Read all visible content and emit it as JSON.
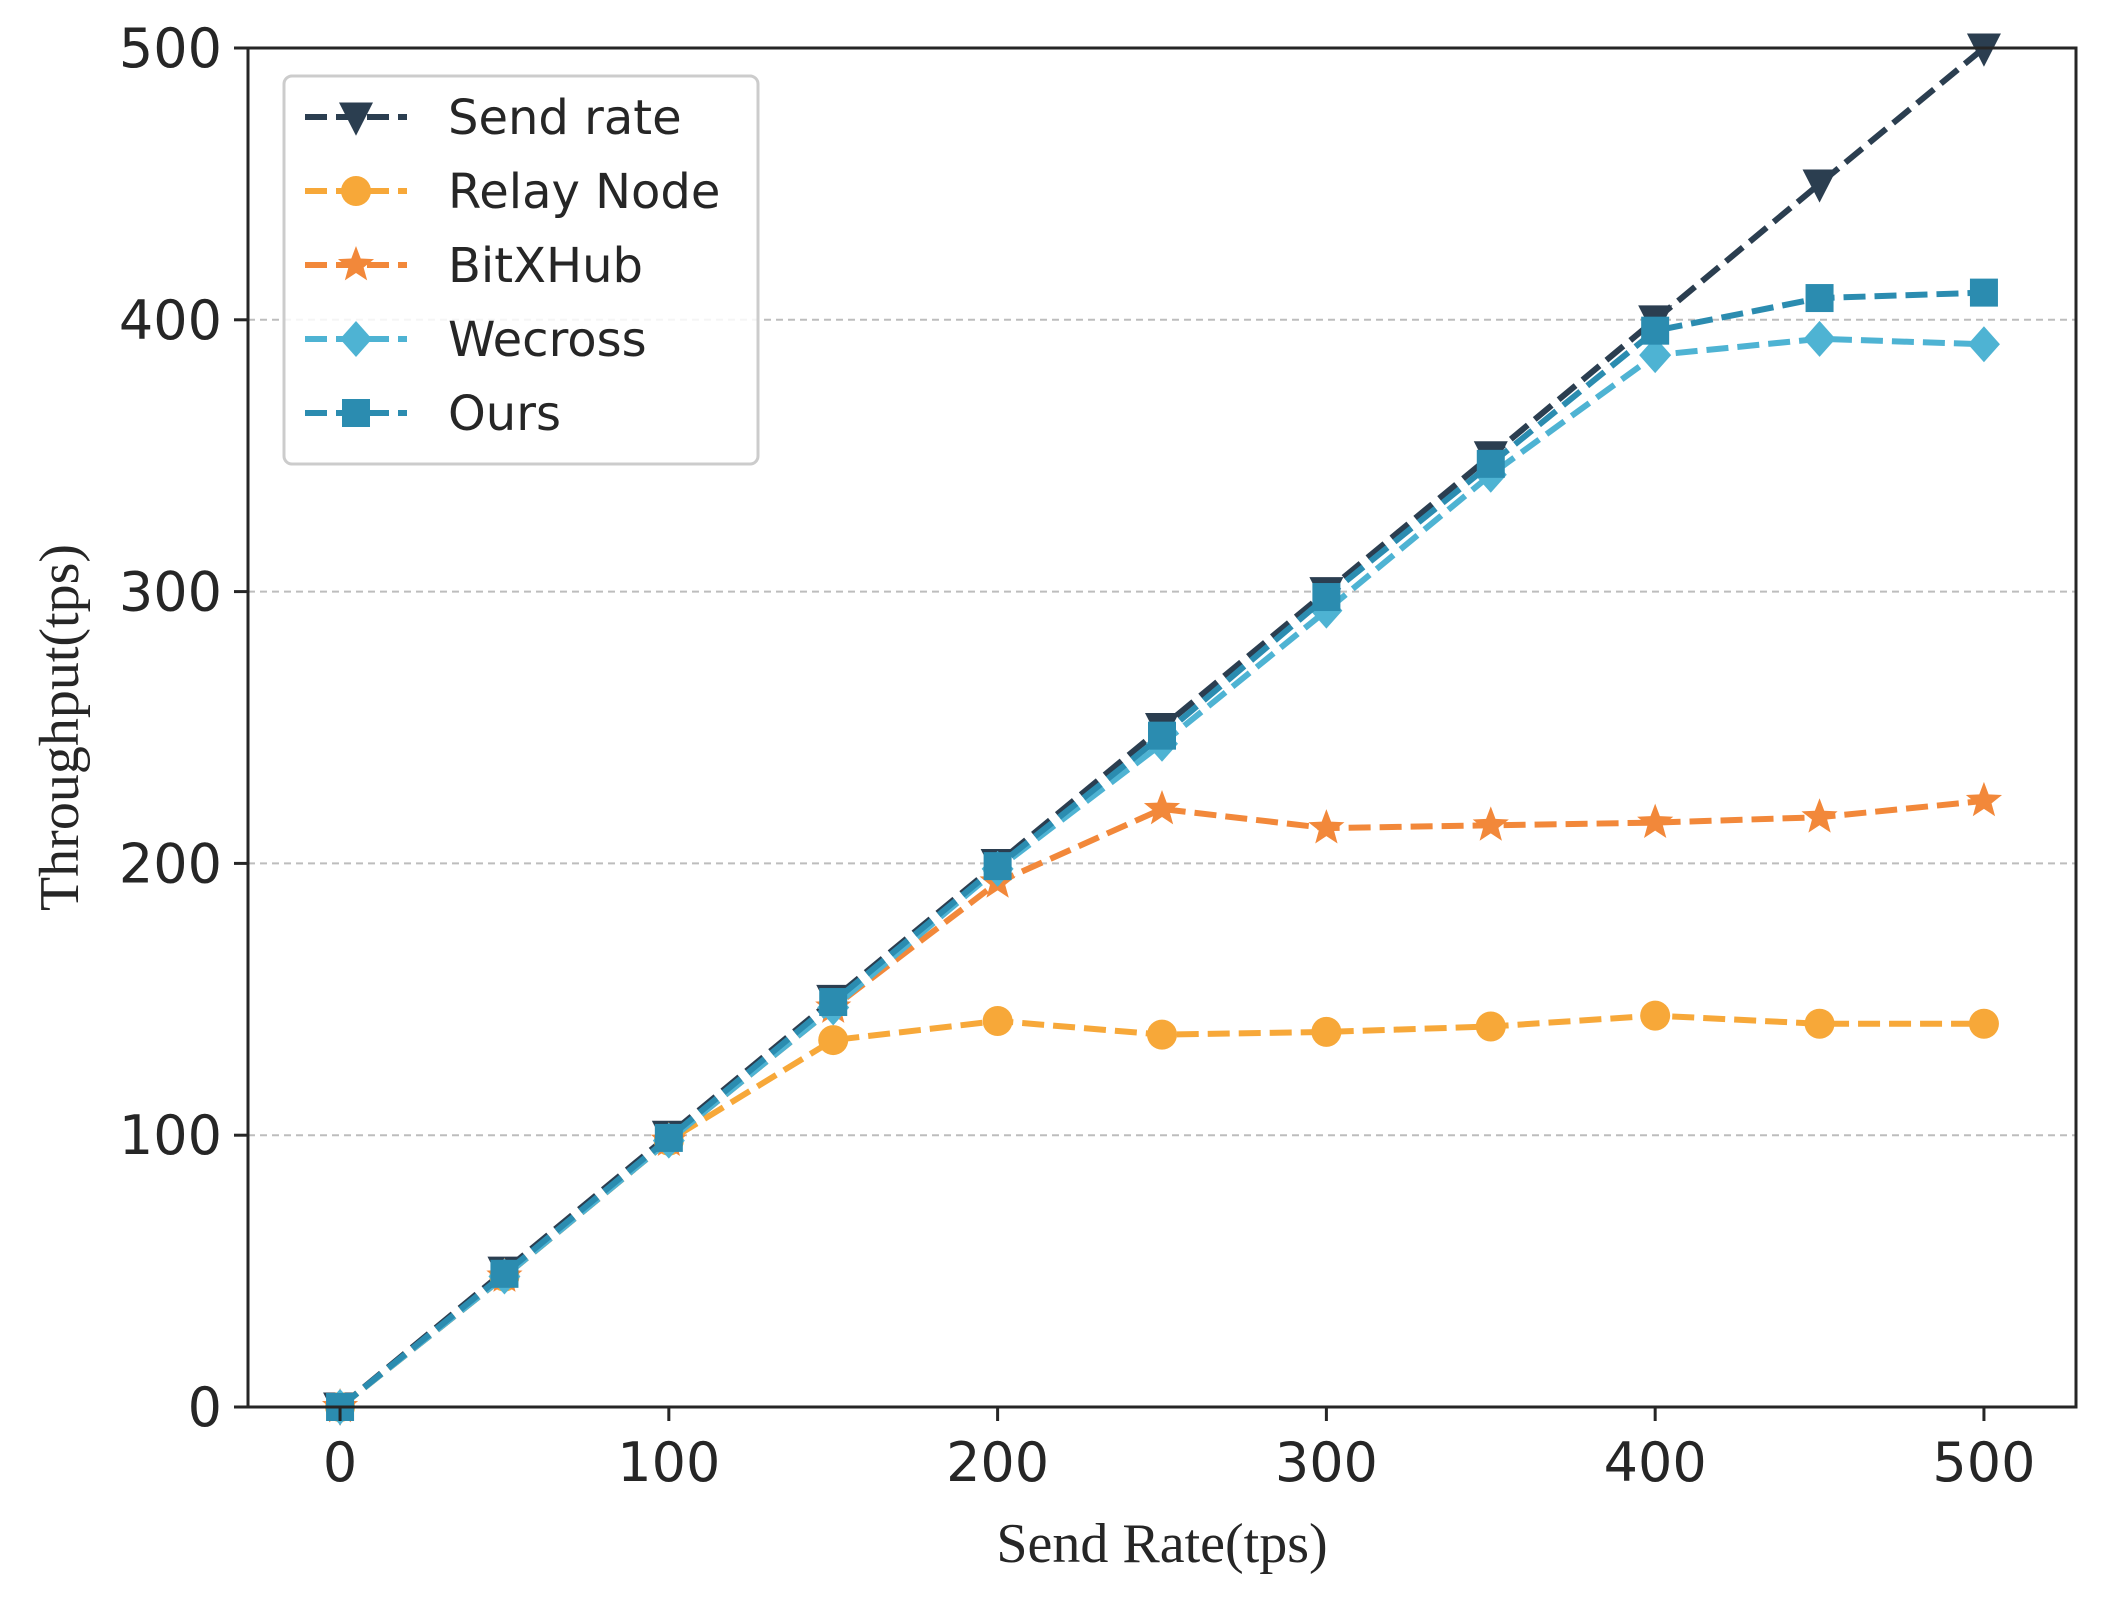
{
  "chart_data": {
    "type": "line",
    "xlabel": "Send Rate(tps)",
    "ylabel": "Throughput(tps)",
    "xlim": [
      -28,
      528
    ],
    "ylim": [
      0,
      500
    ],
    "xticks": [
      0,
      100,
      200,
      300,
      400,
      500
    ],
    "yticks": [
      0,
      100,
      200,
      300,
      400,
      500
    ],
    "grid": "horizontal dashed",
    "legend_position": "top-left",
    "x": [
      0,
      50,
      100,
      150,
      200,
      250,
      300,
      350,
      400,
      450,
      500
    ],
    "series": [
      {
        "name": "Send rate",
        "marker": "triangle-down",
        "color": "#2b3e50",
        "values": [
          0,
          50,
          100,
          150,
          200,
          250,
          300,
          350,
          400,
          450,
          500
        ]
      },
      {
        "name": "Relay Node",
        "marker": "circle",
        "color": "#f7a839",
        "values": [
          0,
          48,
          98,
          135,
          142,
          137,
          138,
          140,
          144,
          141,
          141
        ]
      },
      {
        "name": "BitXHub",
        "marker": "star",
        "color": "#f2883a",
        "values": [
          0,
          48,
          98,
          147,
          193,
          220,
          213,
          214,
          215,
          217,
          223
        ]
      },
      {
        "name": "Wecross",
        "marker": "diamond",
        "color": "#4eb3d3",
        "values": [
          0,
          48,
          98,
          147,
          198,
          244,
          293,
          343,
          387,
          393,
          391
        ]
      },
      {
        "name": "Ours",
        "marker": "square",
        "color": "#2b8cb0",
        "values": [
          0,
          49,
          99,
          149,
          199,
          247,
          298,
          347,
          396,
          408,
          410
        ]
      }
    ]
  }
}
